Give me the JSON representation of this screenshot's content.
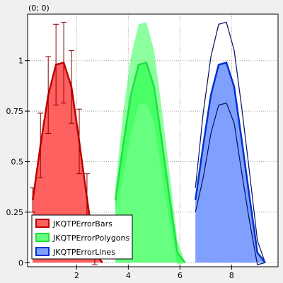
{
  "coordinate_readout": "(0; 0)",
  "colors": {
    "plot_background": "#ffffff",
    "window_background": "#f0f0f0",
    "grid": "#a0a0a0",
    "red_fill": "#ff6060",
    "red_line": "#c00000",
    "red_errorbar": "#8b0000",
    "green_fill": "#66ff80",
    "green_line": "#20e040",
    "green_error_fill": "#30ff50",
    "blue_fill": "#80a0ff",
    "blue_line": "#0030d0",
    "blue_error_line": "#001060"
  },
  "chart_data": {
    "type": "area",
    "title": "",
    "xlabel": "",
    "ylabel": "",
    "xlim": [
      0.1,
      9.8
    ],
    "ylim": [
      -0.02,
      1.23
    ],
    "xticks": [
      2,
      4,
      6,
      8
    ],
    "xtick_labels": [
      "2",
      "4",
      "6",
      "8"
    ],
    "yticks": [
      0,
      0.25,
      0.5,
      0.75,
      1
    ],
    "ytick_labels": [
      "0",
      "0.25",
      "0.5",
      "0.75",
      "1"
    ],
    "grid": true,
    "legend_position": "bottom-left",
    "series": [
      {
        "name": "JKQTPErrorBars",
        "style": "error-bars",
        "color": "red",
        "x": [
          0.3,
          0.6,
          0.9,
          1.2,
          1.5,
          1.8,
          2.1,
          2.4,
          2.7,
          3.0
        ],
        "y": [
          0.31,
          0.58,
          0.83,
          0.98,
          0.99,
          0.87,
          0.6,
          0.32,
          0.05,
          0
        ],
        "error": [
          0.06,
          0.16,
          0.19,
          0.2,
          0.2,
          0.18,
          0.16,
          0.12,
          0.06,
          0
        ]
      },
      {
        "name": "JKQTPErrorPolygons",
        "style": "error-polygons",
        "color": "green",
        "x": [
          3.5,
          3.8,
          4.1,
          4.4,
          4.7,
          5.0,
          5.3,
          5.6,
          5.9,
          6.2
        ],
        "y": [
          0.31,
          0.58,
          0.83,
          0.98,
          0.99,
          0.87,
          0.6,
          0.32,
          0.05,
          0
        ],
        "error": [
          0.06,
          0.16,
          0.19,
          0.2,
          0.2,
          0.18,
          0.16,
          0.12,
          0.06,
          0
        ]
      },
      {
        "name": "JKQTPErrorLines",
        "style": "error-lines",
        "color": "blue",
        "x": [
          6.6,
          6.9,
          7.2,
          7.5,
          7.8,
          8.1,
          8.4,
          8.7,
          9.0,
          9.3
        ],
        "y": [
          0.31,
          0.58,
          0.83,
          0.98,
          0.99,
          0.87,
          0.6,
          0.32,
          0.05,
          0
        ],
        "error": [
          0.06,
          0.16,
          0.19,
          0.2,
          0.2,
          0.18,
          0.16,
          0.12,
          0.06,
          0
        ]
      }
    ]
  }
}
